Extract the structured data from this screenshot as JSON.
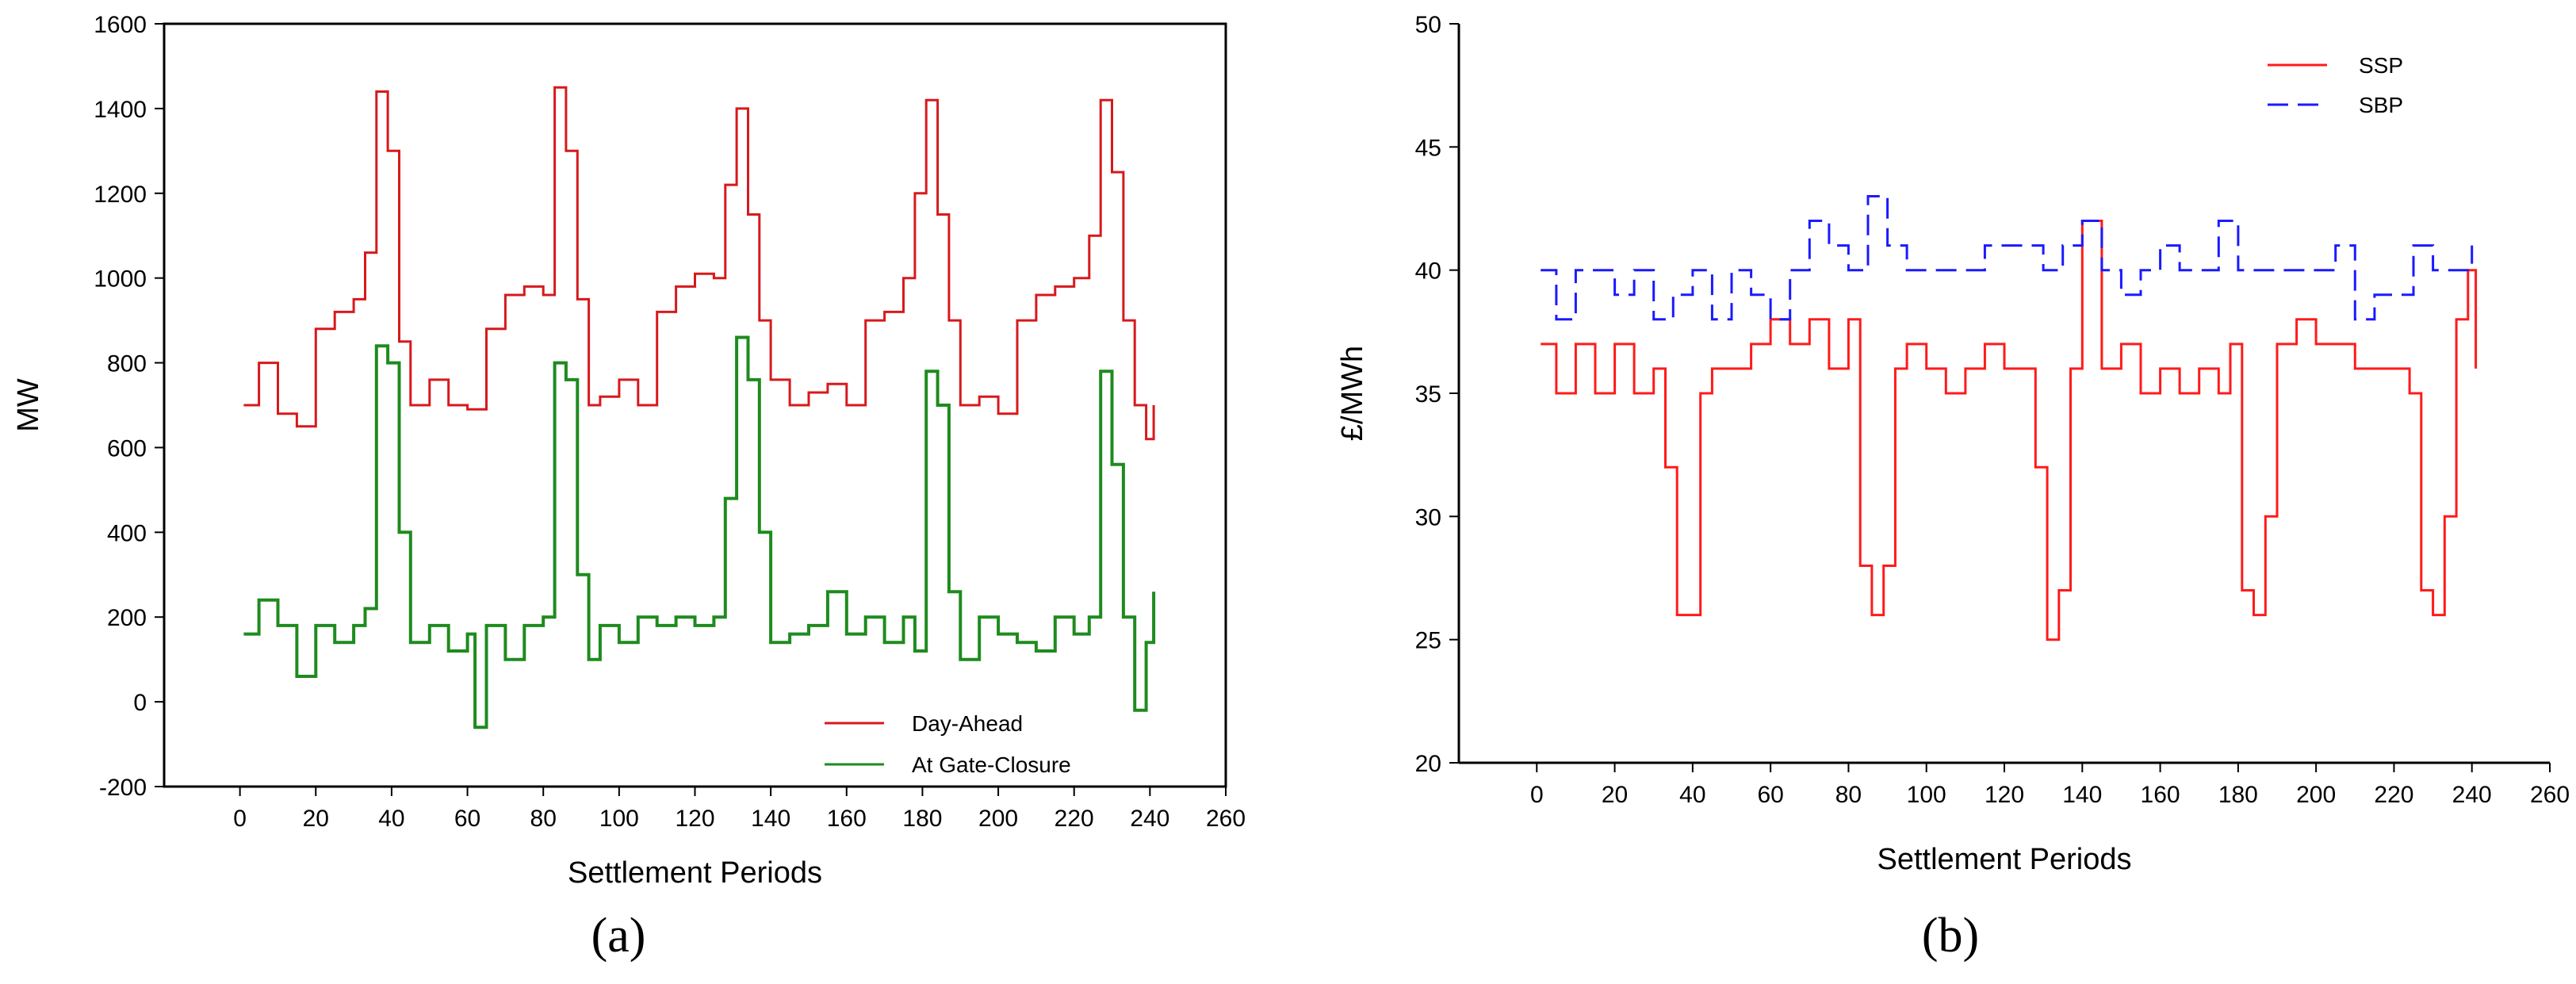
{
  "chart_data": [
    {
      "type": "line",
      "panel_label": "(a)",
      "xlabel": "Settlement Periods",
      "ylabel": "MW",
      "xlim": [
        -20,
        260
      ],
      "ylim": [
        -200,
        1600
      ],
      "x_ticks": [
        0,
        20,
        40,
        60,
        80,
        100,
        120,
        140,
        160,
        180,
        200,
        220,
        240,
        260
      ],
      "y_ticks": [
        -200,
        0,
        200,
        400,
        600,
        800,
        1000,
        1200,
        1400,
        1600
      ],
      "grid": false,
      "legend_position": "bottom-right",
      "step": true,
      "series": [
        {
          "name": "Day-Ahead",
          "color": "#d7191c",
          "dash": "solid",
          "x": [
            1,
            5,
            10,
            15,
            20,
            25,
            30,
            33,
            36,
            39,
            42,
            45,
            50,
            55,
            60,
            65,
            70,
            75,
            80,
            83,
            86,
            89,
            92,
            95,
            100,
            105,
            110,
            115,
            120,
            125,
            128,
            131,
            134,
            137,
            140,
            145,
            150,
            155,
            160,
            165,
            170,
            175,
            178,
            181,
            184,
            187,
            190,
            195,
            200,
            205,
            210,
            215,
            220,
            224,
            227,
            230,
            233,
            236,
            239,
            241
          ],
          "values": [
            700,
            800,
            680,
            650,
            880,
            920,
            950,
            1060,
            1440,
            1300,
            850,
            700,
            760,
            700,
            690,
            880,
            960,
            980,
            960,
            1450,
            1300,
            950,
            700,
            720,
            760,
            700,
            920,
            980,
            1010,
            1000,
            1220,
            1400,
            1150,
            900,
            760,
            700,
            730,
            750,
            700,
            900,
            920,
            1000,
            1200,
            1420,
            1150,
            900,
            700,
            720,
            680,
            900,
            960,
            980,
            1000,
            1100,
            1420,
            1250,
            900,
            700,
            620,
            700
          ]
        },
        {
          "name": "At Gate-Closure",
          "color": "#1e8b1e",
          "dash": "solid",
          "x": [
            1,
            5,
            10,
            15,
            20,
            25,
            30,
            33,
            36,
            39,
            42,
            45,
            50,
            55,
            60,
            62,
            65,
            70,
            75,
            80,
            83,
            86,
            89,
            92,
            95,
            100,
            105,
            110,
            115,
            120,
            125,
            128,
            131,
            134,
            137,
            140,
            145,
            150,
            155,
            160,
            165,
            170,
            175,
            178,
            181,
            184,
            187,
            190,
            195,
            200,
            205,
            210,
            215,
            220,
            224,
            227,
            230,
            233,
            236,
            239,
            241
          ],
          "values": [
            160,
            240,
            180,
            60,
            180,
            140,
            180,
            220,
            840,
            800,
            400,
            140,
            180,
            120,
            160,
            -60,
            180,
            100,
            180,
            200,
            800,
            760,
            300,
            100,
            180,
            140,
            200,
            180,
            200,
            180,
            200,
            480,
            860,
            760,
            400,
            140,
            160,
            180,
            260,
            160,
            200,
            140,
            200,
            120,
            780,
            700,
            260,
            100,
            200,
            160,
            140,
            120,
            200,
            160,
            200,
            780,
            560,
            200,
            -20,
            140,
            260
          ]
        }
      ]
    },
    {
      "type": "line",
      "panel_label": "(b)",
      "xlabel": "Settlement Periods",
      "ylabel": "£/MWh",
      "xlim": [
        -20,
        260
      ],
      "ylim": [
        20,
        50
      ],
      "x_ticks": [
        0,
        20,
        40,
        60,
        80,
        100,
        120,
        140,
        160,
        180,
        200,
        220,
        240,
        260
      ],
      "y_ticks": [
        20,
        25,
        30,
        35,
        40,
        45,
        50
      ],
      "grid": false,
      "legend_position": "top-right",
      "step": true,
      "series": [
        {
          "name": "SSP",
          "color": "#ff1a1a",
          "dash": "solid",
          "x": [
            1,
            5,
            10,
            15,
            20,
            25,
            30,
            33,
            36,
            39,
            42,
            45,
            50,
            55,
            60,
            65,
            70,
            75,
            80,
            83,
            86,
            89,
            92,
            95,
            100,
            105,
            110,
            115,
            120,
            125,
            128,
            131,
            134,
            137,
            140,
            145,
            150,
            155,
            160,
            165,
            170,
            175,
            178,
            181,
            184,
            187,
            190,
            195,
            200,
            205,
            210,
            215,
            220,
            224,
            227,
            230,
            233,
            236,
            239,
            241
          ],
          "values": [
            37,
            35,
            37,
            35,
            37,
            35,
            36,
            32,
            26,
            26,
            35,
            36,
            36,
            37,
            38,
            37,
            38,
            36,
            38,
            28,
            26,
            28,
            36,
            37,
            36,
            35,
            36,
            37,
            36,
            36,
            32,
            25,
            27,
            36,
            42,
            36,
            37,
            35,
            36,
            35,
            36,
            35,
            37,
            27,
            26,
            30,
            37,
            38,
            37,
            37,
            36,
            36,
            36,
            35,
            27,
            26,
            30,
            38,
            40,
            36
          ]
        },
        {
          "name": "SBP",
          "color": "#1a1aff",
          "dash": "dashed",
          "x": [
            1,
            5,
            10,
            15,
            20,
            25,
            30,
            35,
            40,
            45,
            50,
            55,
            60,
            65,
            70,
            75,
            80,
            85,
            90,
            95,
            100,
            105,
            110,
            115,
            120,
            125,
            130,
            135,
            140,
            145,
            150,
            155,
            160,
            165,
            170,
            175,
            180,
            185,
            190,
            195,
            200,
            205,
            210,
            215,
            220,
            225,
            230,
            235,
            240
          ],
          "values": [
            40,
            38,
            40,
            40,
            39,
            40,
            38,
            39,
            40,
            38,
            40,
            39,
            38,
            40,
            42,
            41,
            40,
            43,
            41,
            40,
            40,
            40,
            40,
            41,
            41,
            41,
            40,
            41,
            42,
            40,
            39,
            40,
            41,
            40,
            40,
            42,
            40,
            40,
            40,
            40,
            40,
            41,
            38,
            39,
            39,
            41,
            40,
            40,
            41
          ]
        }
      ]
    }
  ]
}
